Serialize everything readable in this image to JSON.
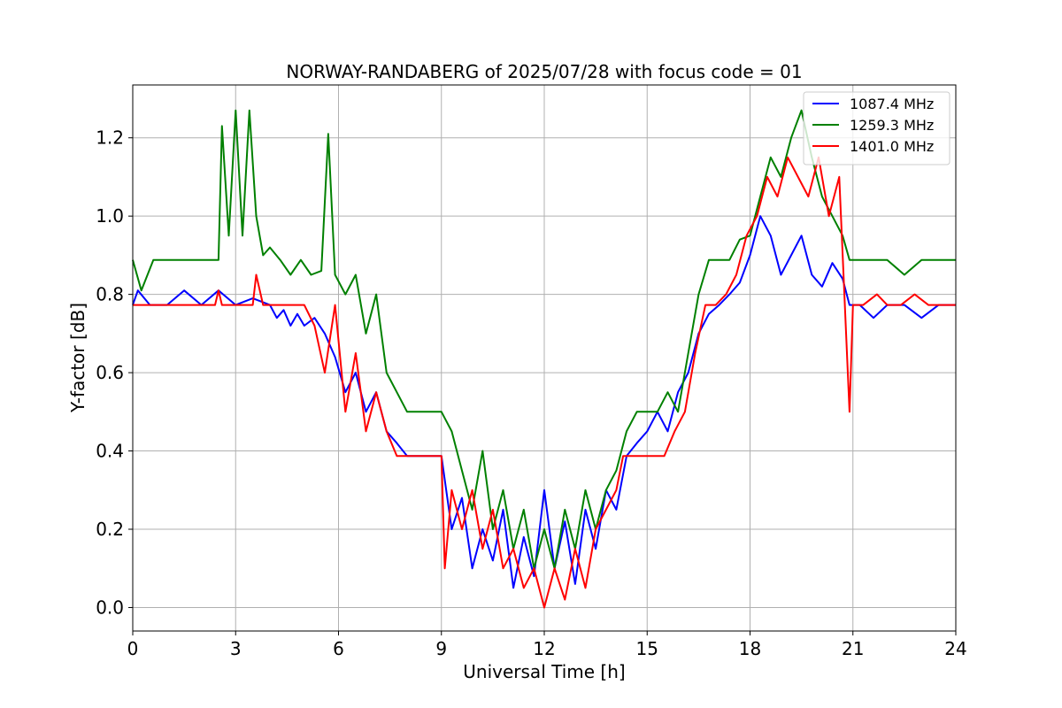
{
  "chart_data": {
    "type": "line",
    "title": "NORWAY-RANDABERG of 2025/07/28 with focus code = 01",
    "xlabel": "Universal Time [h]",
    "ylabel": "Y-factor [dB]",
    "xlim": [
      0,
      24
    ],
    "ylim": [
      -0.06,
      1.335
    ],
    "xticks": [
      0,
      3,
      6,
      9,
      12,
      15,
      18,
      21,
      24
    ],
    "yticks": [
      0.0,
      0.2,
      0.4,
      0.6,
      0.8,
      1.0,
      1.2
    ],
    "xtick_labels": [
      "0",
      "3",
      "6",
      "9",
      "12",
      "15",
      "18",
      "21",
      "24"
    ],
    "ytick_labels": [
      "0.0",
      "0.2",
      "0.4",
      "0.6",
      "0.8",
      "1.0",
      "1.2"
    ],
    "grid": true,
    "legend_position": "top-right",
    "series": [
      {
        "name": "1087.4 MHz",
        "color": "#0000ff",
        "x": [
          0,
          0.15,
          0.5,
          0.75,
          1.0,
          1.5,
          2.0,
          2.5,
          3.0,
          3.5,
          4.0,
          4.2,
          4.4,
          4.6,
          4.8,
          5.0,
          5.3,
          5.6,
          5.9,
          6.2,
          6.5,
          6.8,
          7.1,
          7.4,
          7.7,
          8.0,
          8.5,
          9.0,
          9.3,
          9.6,
          9.9,
          10.2,
          10.5,
          10.8,
          11.1,
          11.4,
          11.7,
          12.0,
          12.3,
          12.6,
          12.9,
          13.2,
          13.5,
          13.8,
          14.1,
          14.4,
          14.7,
          15.0,
          15.3,
          15.6,
          15.9,
          16.2,
          16.5,
          16.8,
          17.1,
          17.4,
          17.7,
          18.0,
          18.3,
          18.6,
          18.9,
          19.2,
          19.5,
          19.8,
          20.1,
          20.4,
          20.7,
          20.9,
          21.2,
          21.6,
          22.0,
          22.5,
          23.0,
          23.5,
          24.0
        ],
        "y": [
          0.773,
          0.81,
          0.773,
          0.773,
          0.773,
          0.81,
          0.773,
          0.81,
          0.773,
          0.79,
          0.773,
          0.74,
          0.76,
          0.72,
          0.75,
          0.72,
          0.74,
          0.7,
          0.64,
          0.55,
          0.6,
          0.5,
          0.55,
          0.45,
          0.42,
          0.387,
          0.387,
          0.387,
          0.2,
          0.28,
          0.1,
          0.2,
          0.12,
          0.25,
          0.05,
          0.18,
          0.08,
          0.3,
          0.1,
          0.22,
          0.06,
          0.25,
          0.15,
          0.3,
          0.25,
          0.387,
          0.42,
          0.45,
          0.5,
          0.45,
          0.55,
          0.6,
          0.7,
          0.75,
          0.773,
          0.8,
          0.83,
          0.9,
          1.0,
          0.95,
          0.85,
          0.9,
          0.95,
          0.85,
          0.82,
          0.88,
          0.84,
          0.773,
          0.773,
          0.74,
          0.773,
          0.773,
          0.74,
          0.773,
          0.773
        ]
      },
      {
        "name": "1259.3 MHz",
        "color": "#008000",
        "x": [
          0,
          0.25,
          0.6,
          1.0,
          1.5,
          2.0,
          2.5,
          2.6,
          2.8,
          3.0,
          3.2,
          3.4,
          3.6,
          3.8,
          4.0,
          4.3,
          4.6,
          4.9,
          5.2,
          5.5,
          5.7,
          5.9,
          6.2,
          6.5,
          6.8,
          7.1,
          7.4,
          7.7,
          8.0,
          8.3,
          8.6,
          9.0,
          9.3,
          9.6,
          9.9,
          10.2,
          10.5,
          10.8,
          11.1,
          11.4,
          11.7,
          12.0,
          12.3,
          12.6,
          12.9,
          13.2,
          13.5,
          13.8,
          14.1,
          14.4,
          14.7,
          15.0,
          15.3,
          15.6,
          15.9,
          16.2,
          16.5,
          16.8,
          17.1,
          17.4,
          17.7,
          18.0,
          18.3,
          18.6,
          18.9,
          19.2,
          19.5,
          19.8,
          20.1,
          20.4,
          20.7,
          20.9,
          21.5,
          22.0,
          22.5,
          23.0,
          23.5,
          24.0
        ],
        "y": [
          0.888,
          0.81,
          0.888,
          0.888,
          0.888,
          0.888,
          0.888,
          1.23,
          0.95,
          1.27,
          0.95,
          1.27,
          1.0,
          0.9,
          0.92,
          0.888,
          0.85,
          0.888,
          0.85,
          0.86,
          1.21,
          0.85,
          0.8,
          0.85,
          0.7,
          0.8,
          0.6,
          0.55,
          0.5,
          0.5,
          0.5,
          0.5,
          0.45,
          0.35,
          0.25,
          0.4,
          0.2,
          0.3,
          0.15,
          0.25,
          0.1,
          0.2,
          0.1,
          0.25,
          0.15,
          0.3,
          0.2,
          0.3,
          0.35,
          0.45,
          0.5,
          0.5,
          0.5,
          0.55,
          0.5,
          0.65,
          0.8,
          0.888,
          0.888,
          0.888,
          0.94,
          0.95,
          1.05,
          1.15,
          1.1,
          1.2,
          1.27,
          1.15,
          1.05,
          1.0,
          0.95,
          0.888,
          0.888,
          0.888,
          0.85,
          0.888,
          0.888,
          0.888
        ]
      },
      {
        "name": "1401.0 MHz",
        "color": "#ff0000",
        "x": [
          0,
          1.0,
          2.0,
          2.4,
          2.5,
          2.6,
          3.0,
          3.5,
          3.6,
          3.8,
          4.0,
          4.5,
          5.0,
          5.3,
          5.6,
          5.9,
          6.2,
          6.5,
          6.8,
          7.1,
          7.4,
          7.7,
          8.0,
          8.5,
          9.0,
          9.1,
          9.3,
          9.6,
          9.9,
          10.2,
          10.5,
          10.8,
          11.1,
          11.4,
          11.7,
          12.0,
          12.3,
          12.6,
          12.9,
          13.2,
          13.5,
          13.8,
          14.1,
          14.3,
          14.6,
          14.9,
          15.2,
          15.5,
          15.8,
          16.1,
          16.4,
          16.7,
          17.0,
          17.3,
          17.6,
          17.9,
          18.2,
          18.5,
          18.8,
          19.1,
          19.4,
          19.7,
          20.0,
          20.3,
          20.6,
          20.9,
          21.0,
          21.3,
          21.7,
          22.0,
          22.4,
          22.8,
          23.2,
          23.6,
          24.0
        ],
        "y": [
          0.773,
          0.773,
          0.773,
          0.773,
          0.81,
          0.773,
          0.773,
          0.773,
          0.85,
          0.773,
          0.773,
          0.773,
          0.773,
          0.72,
          0.6,
          0.773,
          0.5,
          0.65,
          0.45,
          0.55,
          0.45,
          0.387,
          0.387,
          0.387,
          0.387,
          0.1,
          0.3,
          0.2,
          0.3,
          0.15,
          0.25,
          0.1,
          0.15,
          0.05,
          0.1,
          0.0,
          0.1,
          0.02,
          0.15,
          0.05,
          0.2,
          0.25,
          0.3,
          0.387,
          0.387,
          0.387,
          0.387,
          0.387,
          0.45,
          0.5,
          0.65,
          0.773,
          0.773,
          0.8,
          0.85,
          0.95,
          1.0,
          1.1,
          1.05,
          1.15,
          1.1,
          1.05,
          1.15,
          1.0,
          1.1,
          0.5,
          0.773,
          0.773,
          0.8,
          0.773,
          0.773,
          0.8,
          0.773,
          0.773,
          0.773
        ]
      }
    ]
  }
}
